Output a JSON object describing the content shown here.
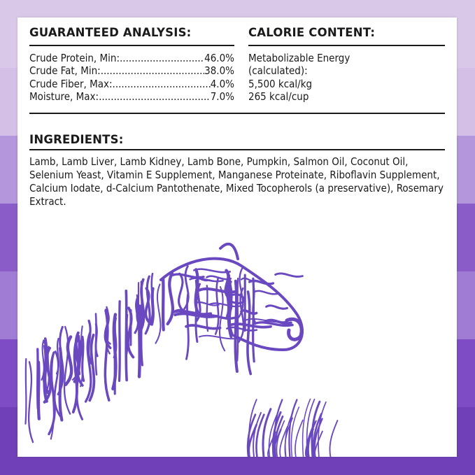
{
  "colors": {
    "bands": [
      "#dac8e8",
      "#c9b0e0",
      "#a886d6",
      "#8858c8",
      "#9a74d0",
      "#7e4cc4",
      "#7040b8"
    ],
    "accent": "#6a48c0"
  },
  "guaranteed_analysis": {
    "heading": "GUARANTEED ANALYSIS:",
    "rows": [
      {
        "label": "Crude Protein, Min:",
        "value": "46.0%"
      },
      {
        "label": "Crude Fat, Min:",
        "value": "38.0%"
      },
      {
        "label": "Crude Fiber, Max:",
        "value": "4.0%"
      },
      {
        "label": "Moisture, Max:",
        "value": "7.0%"
      }
    ]
  },
  "calorie_content": {
    "heading": "CALORIE CONTENT:",
    "lines": [
      "Metabolizable Energy",
      "(calculated):",
      "5,500 kcal/kg",
      "265 kcal/cup"
    ]
  },
  "ingredients": {
    "heading": "INGREDIENTS:",
    "text": "Lamb, Lamb Liver, Lamb Kidney, Lamb Bone, Pumpkin, Salmon Oil, Coconut Oil, Selenium Yeast, Vitamin E Supplement, Manganese Proteinate, Riboflavin Supplement, Calcium Iodate, d-Calcium Pantothenate, Mixed Tocopherols (a preservative), Rosemary Extract."
  },
  "illustration": "lamb-illustration"
}
